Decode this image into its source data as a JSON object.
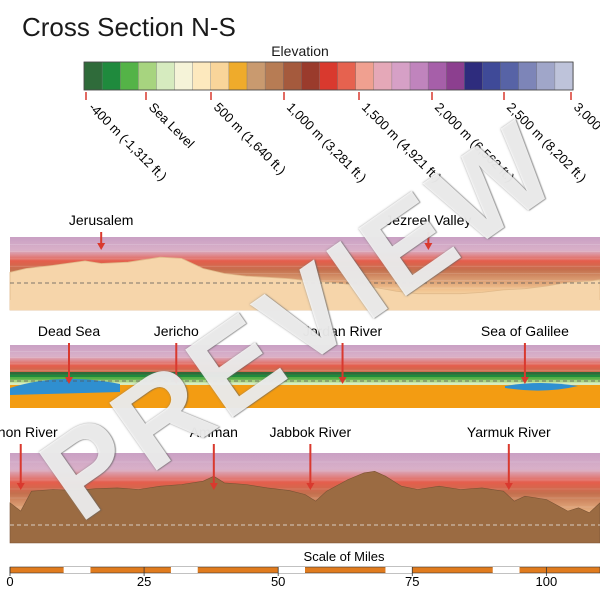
{
  "title": "Cross Section N-S",
  "legend": {
    "title": "Elevation",
    "colors": [
      "#2f6b3a",
      "#1f8a3d",
      "#54b347",
      "#a7d47f",
      "#d6ebbf",
      "#f5f3d8",
      "#fde9be",
      "#f9d59a",
      "#efab2b",
      "#c99a6f",
      "#b77c54",
      "#a55a3d",
      "#9a3b2c",
      "#d9392e",
      "#e6624f",
      "#f0a090",
      "#e5a8b8",
      "#d6a0c6",
      "#c084bd",
      "#a65fa9",
      "#8c3f8f",
      "#2e2c7d",
      "#3f4a98",
      "#5763a6",
      "#7d85b8",
      "#a0a6c9",
      "#bec3da"
    ],
    "labels": [
      "-400 m (-1,312 ft.)",
      "Sea Level",
      "500 m (1,640 ft.)",
      "1,000 m (3,281 ft.)",
      "1,500 m (4,921 ft.)",
      "2,000 m (6,562 ft.)",
      "2,500 m (8,202 ft.)",
      "3,000"
    ]
  },
  "panels": [
    {
      "labels": [
        "Jerusalem",
        "Jezreel Valley"
      ],
      "label_data_x": [
        17,
        78
      ],
      "terrain_color": "#f6d5aa",
      "profile": [
        [
          0,
          44
        ],
        [
          3,
          50
        ],
        [
          8,
          55
        ],
        [
          14,
          62
        ],
        [
          17,
          58
        ],
        [
          22,
          60
        ],
        [
          28,
          68
        ],
        [
          32,
          66
        ],
        [
          36,
          50
        ],
        [
          40,
          42
        ],
        [
          44,
          38
        ],
        [
          48,
          36
        ],
        [
          52,
          34
        ],
        [
          56,
          30
        ],
        [
          60,
          28
        ],
        [
          64,
          24
        ],
        [
          68,
          20
        ],
        [
          72,
          14
        ],
        [
          76,
          10
        ],
        [
          80,
          10
        ],
        [
          84,
          10
        ],
        [
          88,
          12
        ],
        [
          92,
          16
        ],
        [
          96,
          18
        ],
        [
          100,
          22
        ],
        [
          104,
          28
        ],
        [
          108,
          30
        ],
        [
          110,
          32
        ]
      ]
    },
    {
      "labels": [
        "Dead Sea",
        "Jericho",
        "Jordan River",
        "Sea of Galilee"
      ],
      "label_data_x": [
        11,
        31,
        62,
        96
      ],
      "terrain_color": "#f39c12"
    },
    {
      "labels": [
        "Arnon River",
        "Amman",
        "Jabbok River",
        "Yarmuk River"
      ],
      "label_data_x": [
        2,
        38,
        56,
        93
      ],
      "terrain_color": "#9b6b42",
      "profile": [
        [
          0,
          40
        ],
        [
          2,
          30
        ],
        [
          4,
          54
        ],
        [
          8,
          56
        ],
        [
          12,
          55
        ],
        [
          16,
          57
        ],
        [
          20,
          58
        ],
        [
          24,
          56
        ],
        [
          28,
          60
        ],
        [
          32,
          62
        ],
        [
          36,
          66
        ],
        [
          38,
          72
        ],
        [
          40,
          64
        ],
        [
          44,
          62
        ],
        [
          48,
          58
        ],
        [
          52,
          55
        ],
        [
          55,
          50
        ],
        [
          57,
          42
        ],
        [
          59,
          54
        ],
        [
          63,
          68
        ],
        [
          66,
          76
        ],
        [
          68,
          78
        ],
        [
          70,
          72
        ],
        [
          73,
          60
        ],
        [
          76,
          56
        ],
        [
          80,
          60
        ],
        [
          84,
          56
        ],
        [
          88,
          58
        ],
        [
          92,
          54
        ],
        [
          94,
          42
        ],
        [
          96,
          48
        ],
        [
          100,
          44
        ],
        [
          104,
          30
        ],
        [
          106,
          34
        ],
        [
          108,
          28
        ],
        [
          110,
          40
        ]
      ]
    }
  ],
  "scale": {
    "title": "Scale of Miles",
    "ticks": [
      0,
      25,
      50,
      75,
      100
    ],
    "max": 110
  }
}
